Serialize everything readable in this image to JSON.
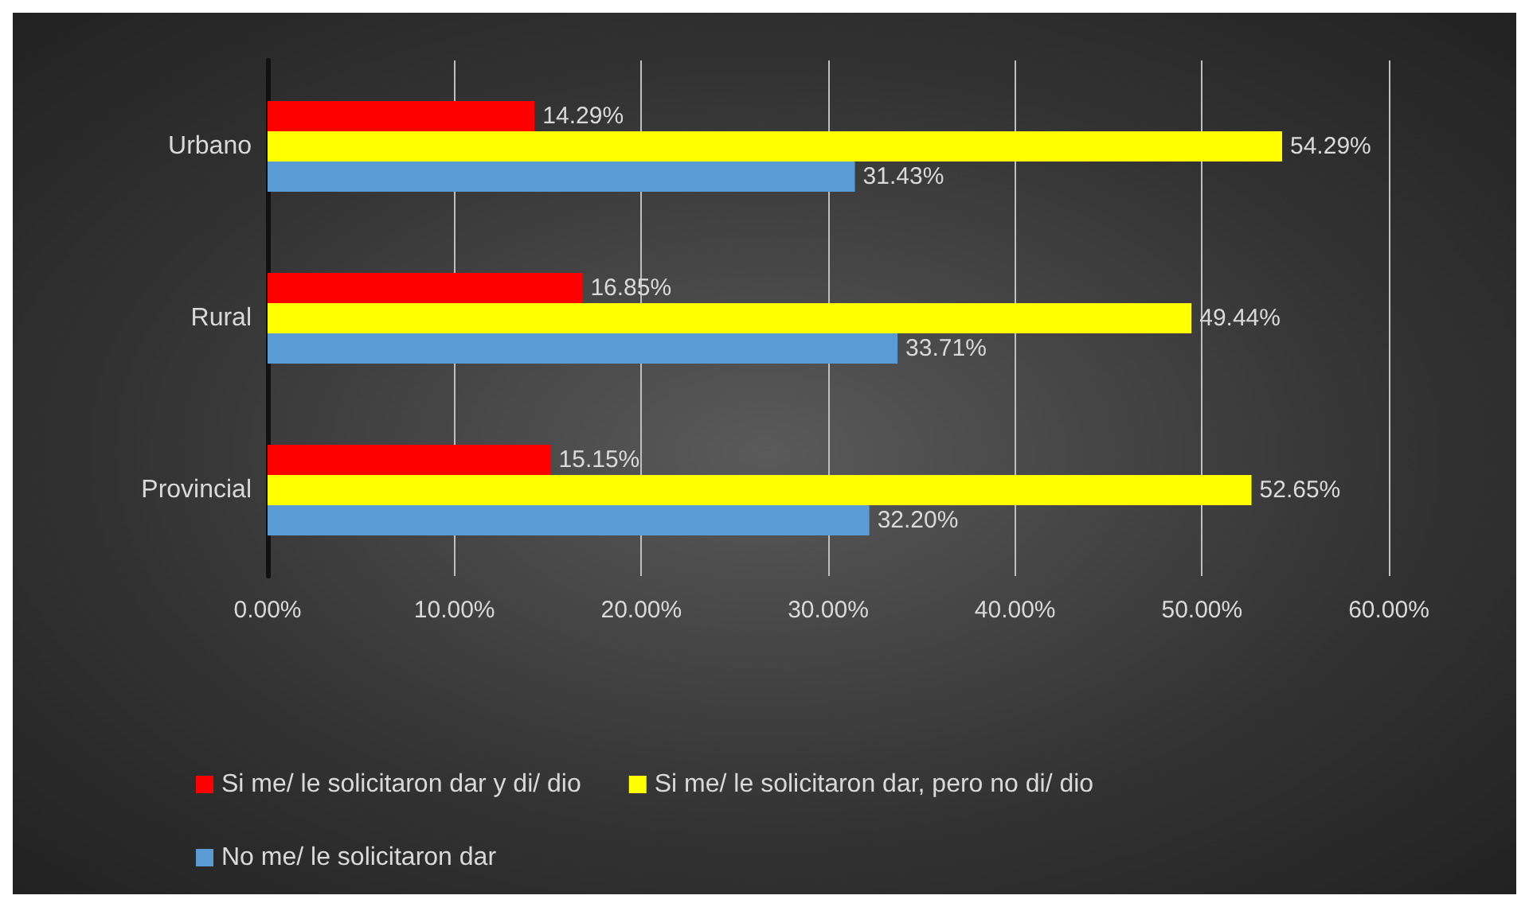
{
  "chart_data": {
    "type": "bar",
    "orientation": "horizontal",
    "categories": [
      "Urbano",
      "Rural",
      "Provincial"
    ],
    "series": [
      {
        "name": "Si me/ le solicitaron dar y di/ dio",
        "color": "#ff0000",
        "values": [
          14.29,
          16.85,
          15.15
        ],
        "value_labels": [
          "14.29%",
          "16.85%",
          "15.15%"
        ]
      },
      {
        "name": "Si me/ le solicitaron dar, pero no di/ dio",
        "color": "#ffff00",
        "values": [
          54.29,
          49.44,
          52.65
        ],
        "value_labels": [
          "54.29%",
          "49.44%",
          "52.65%"
        ]
      },
      {
        "name": "No me/ le solicitaron dar",
        "color": "#5b9bd5",
        "values": [
          31.43,
          33.71,
          32.2
        ],
        "value_labels": [
          "31.43%",
          "33.71%",
          "32.20%"
        ]
      }
    ],
    "xlim": [
      0,
      60
    ],
    "xticks": [
      {
        "value": 0,
        "label": "0.00%"
      },
      {
        "value": 10,
        "label": "10.00%"
      },
      {
        "value": 20,
        "label": "20.00%"
      },
      {
        "value": 30,
        "label": "30.00%"
      },
      {
        "value": 40,
        "label": "40.00%"
      },
      {
        "value": 50,
        "label": "50.00%"
      },
      {
        "value": 60,
        "label": "60.00%"
      }
    ],
    "grid": "x",
    "legend": "bottom"
  }
}
